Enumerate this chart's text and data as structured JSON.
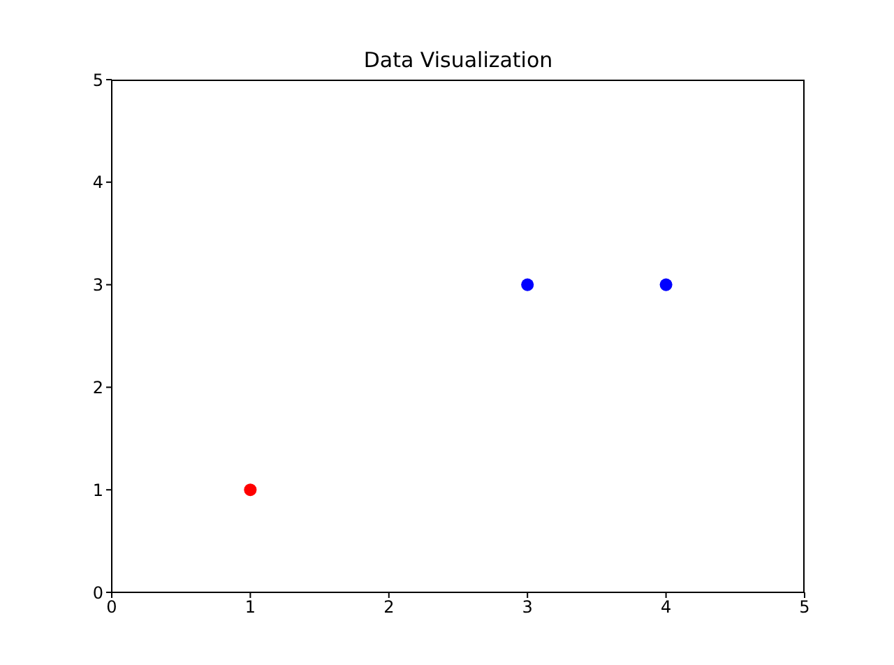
{
  "chart_data": {
    "type": "scatter",
    "title": "Data Visualization",
    "x": [
      1,
      3,
      4
    ],
    "values": [
      1,
      3,
      3
    ],
    "colors": [
      "#ff0000",
      "#0000ff",
      "#0000ff"
    ],
    "xlim": [
      0,
      5
    ],
    "xticks": [
      0,
      1,
      2,
      3,
      4,
      5
    ],
    "ylim": [
      0,
      5
    ],
    "yticks": [
      0,
      1,
      2,
      3,
      4,
      5
    ],
    "grid": false,
    "marker": "circle"
  }
}
